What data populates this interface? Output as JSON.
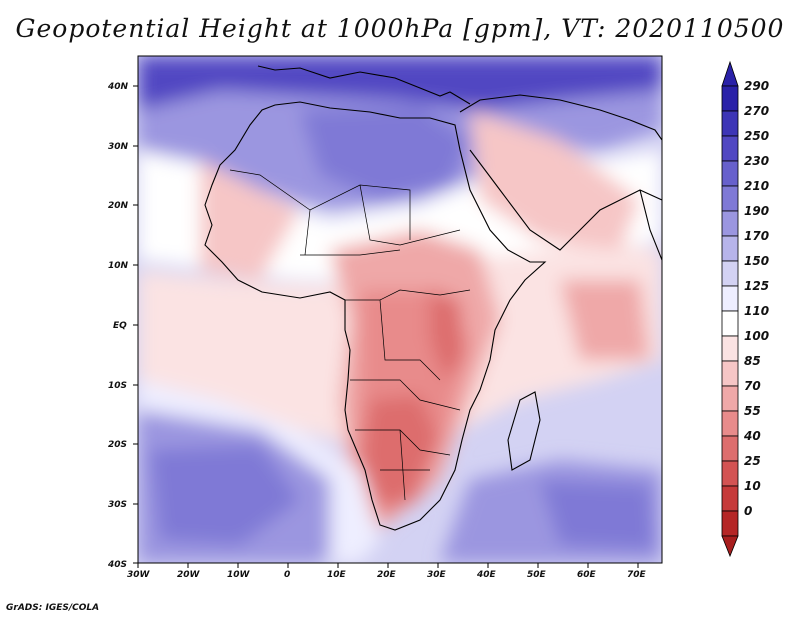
{
  "title": "Geopotential Height at 1000hPa [gpm], VT: 2020110500",
  "credit": "GrADS: IGES/COLA",
  "map": {
    "lat_labels": [
      "40N",
      "30N",
      "20N",
      "10N",
      "EQ",
      "10S",
      "20S",
      "30S",
      "40S"
    ],
    "lon_labels": [
      "30W",
      "20W",
      "10W",
      "0",
      "10E",
      "20E",
      "30E",
      "40E",
      "50E",
      "60E",
      "70E"
    ],
    "extent": {
      "lon": [
        -30,
        75
      ],
      "lat": [
        -40,
        45
      ]
    }
  },
  "colorbar": {
    "levels": [
      "290",
      "270",
      "250",
      "230",
      "210",
      "190",
      "170",
      "150",
      "125",
      "110",
      "100",
      "85",
      "70",
      "55",
      "40",
      "25",
      "10",
      "0"
    ],
    "colors": [
      "#2a21a8",
      "#3d35b6",
      "#5147c2",
      "#6760cc",
      "#7f79d6",
      "#9b96e0",
      "#b7b4ea",
      "#d3d2f3",
      "#eeeeff",
      "#ffffff",
      "#fbe3e3",
      "#f6c6c6",
      "#efa8a8",
      "#e88b8b",
      "#dd6d6d",
      "#d35353",
      "#c63a3a",
      "#b52626"
    ],
    "top_color": "#2a21a8",
    "bottom_color": "#a81e1e"
  }
}
